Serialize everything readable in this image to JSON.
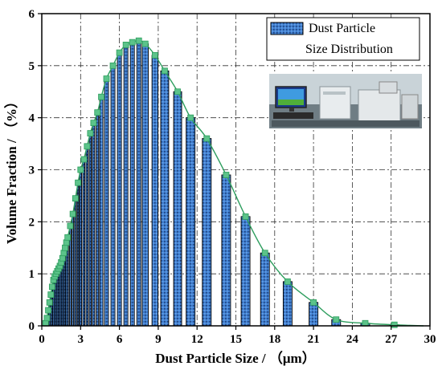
{
  "chart_data": {
    "type": "bar",
    "xlabel": "Dust Particle Size / （μm）",
    "ylabel": "Volume Fraction / （%）",
    "xlim": [
      0,
      30
    ],
    "ylim": [
      0,
      6
    ],
    "x_ticks": [
      "0",
      "3",
      "6",
      "9",
      "12",
      "15",
      "18",
      "21",
      "24",
      "27",
      "30"
    ],
    "y_ticks": [
      "0",
      "1",
      "2",
      "3",
      "4",
      "5",
      "6"
    ],
    "grid": true,
    "legend_position": "top-right",
    "colors": {
      "bar": "#3f7fd0",
      "line": "#2e9e5e",
      "marker": "#5cc38a",
      "grid": "#333333"
    },
    "series": [
      {
        "name": "Dust Particle Size Distribution",
        "x": [
          0.3,
          0.4,
          0.5,
          0.6,
          0.7,
          0.8,
          0.9,
          1.0,
          1.1,
          1.2,
          1.3,
          1.4,
          1.5,
          1.6,
          1.7,
          1.8,
          1.9,
          2.0,
          2.2,
          2.4,
          2.6,
          2.8,
          3.0,
          3.25,
          3.5,
          3.75,
          4.0,
          4.3,
          4.6,
          5.0,
          5.5,
          6.0,
          6.5,
          7.0,
          7.5,
          8.0,
          8.75,
          9.5,
          10.5,
          11.5,
          12.75,
          14.25,
          15.75,
          17.25,
          19.0,
          21.0,
          22.75,
          25.0,
          27.25
        ],
        "values": [
          0.05,
          0.15,
          0.3,
          0.45,
          0.6,
          0.75,
          0.88,
          0.95,
          1.0,
          1.05,
          1.1,
          1.15,
          1.22,
          1.3,
          1.4,
          1.5,
          1.6,
          1.7,
          1.92,
          2.15,
          2.45,
          2.75,
          3.0,
          3.2,
          3.45,
          3.7,
          3.9,
          4.1,
          4.4,
          4.75,
          5.0,
          5.25,
          5.4,
          5.45,
          5.48,
          5.42,
          5.2,
          4.9,
          4.5,
          4.0,
          3.6,
          2.9,
          2.1,
          1.4,
          0.85,
          0.45,
          0.12,
          0.05,
          0.02
        ]
      }
    ]
  },
  "photo_alt_name": "lab-instrument-photo"
}
